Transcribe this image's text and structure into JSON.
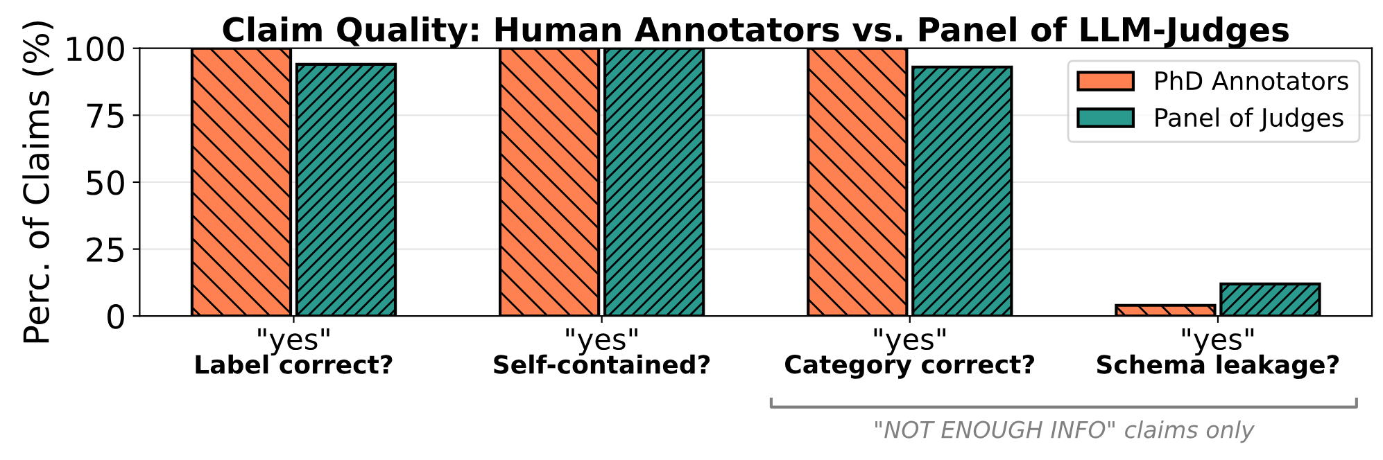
{
  "chart_data": {
    "type": "bar",
    "title": "Claim Quality: Human Annotators vs. Panel of LLM-Judges",
    "ylabel": "Perc. of Claims (%)",
    "categories": [
      "\"yes\"\nLabel correct?",
      "\"yes\"\nSelf-contained?",
      "\"yes\"\nCategory correct?",
      "\"yes\"\nSchema leakage?"
    ],
    "series": [
      {
        "name": "PhD Annotators",
        "color": "#ff8050",
        "values": [
          100,
          100,
          100,
          4
        ]
      },
      {
        "name": "Panel of Judges",
        "color": "#2a9a8f",
        "values": [
          94,
          100,
          93,
          12
        ]
      }
    ],
    "ylim": [
      0,
      100
    ],
    "yticks": [
      0,
      25,
      50,
      75,
      100
    ],
    "grid": "y",
    "legend": "top right",
    "annotations": [
      "\"NOT ENOUGH INFO\" claims only"
    ]
  }
}
